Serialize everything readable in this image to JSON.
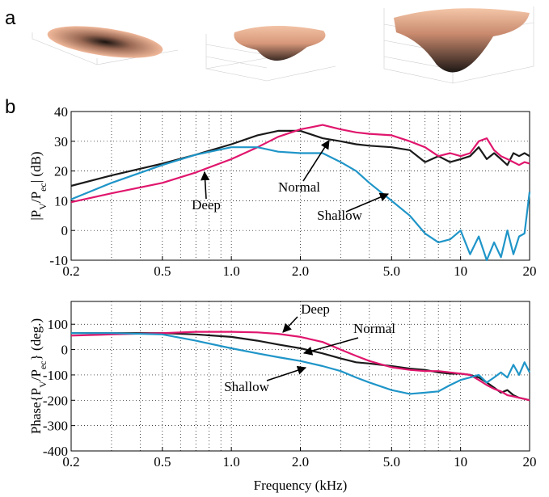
{
  "panel_labels": [
    "a",
    "b"
  ],
  "chart_data": [
    {
      "type": "line",
      "log_x": true,
      "grid": true,
      "ylabel_parts": [
        {
          "text": "|P"
        },
        {
          "text": "V",
          "sub": true
        },
        {
          "text": "/P"
        },
        {
          "text": "ec",
          "sub": true
        },
        {
          "text": "| (dB)"
        }
      ],
      "x": [
        0.2,
        0.3,
        0.5,
        0.7,
        1.0,
        1.3,
        1.6,
        2.0,
        2.5,
        3.0,
        3.5,
        4.0,
        5.0,
        6.0,
        7.0,
        8.0,
        9.0,
        10,
        11,
        12,
        13,
        14,
        15,
        16,
        17,
        18,
        19,
        20
      ],
      "series": [
        {
          "name": "Normal",
          "color": "#1a1a1a",
          "values": [
            15,
            18.5,
            22.5,
            25.5,
            29,
            32,
            33.5,
            33.5,
            31,
            30,
            29,
            28.5,
            28,
            27,
            23,
            25,
            23,
            24,
            25,
            28,
            24,
            26,
            24,
            22,
            26,
            25,
            26,
            25
          ]
        },
        {
          "name": "Deep",
          "color": "#e0166d",
          "values": [
            9.5,
            12.5,
            16,
            19.5,
            24,
            28,
            31.5,
            34,
            35.5,
            34,
            33,
            32.5,
            32,
            30,
            28,
            25,
            26,
            25,
            26,
            30,
            31,
            27,
            25,
            24,
            23,
            22,
            23,
            22.5
          ]
        },
        {
          "name": "Shallow",
          "color": "#1f95c8",
          "values": [
            10.5,
            16,
            22,
            25.5,
            28,
            28,
            26.5,
            26,
            26,
            23,
            20,
            16,
            10,
            5,
            -1,
            -4,
            -3,
            0,
            -8,
            -2,
            -10,
            -4,
            -9,
            0,
            -8,
            -2,
            -1,
            13
          ]
        }
      ],
      "xlim": [
        0.2,
        20
      ],
      "xticks": [
        0.2,
        0.5,
        {
          "value": 1,
          "label": "1.0"
        },
        {
          "value": 2,
          "label": "2.0"
        },
        {
          "value": 5,
          "label": "5.0"
        },
        10,
        20
      ],
      "xminorticks": [
        0.3,
        0.4,
        0.6,
        0.7,
        0.8,
        0.9,
        3,
        4,
        6,
        7,
        8,
        9
      ],
      "ylim": [
        -10,
        40
      ],
      "yticks": [
        -10,
        0,
        10,
        20,
        30,
        40
      ],
      "annotations": [
        "Deep",
        "Normal",
        "Shallow"
      ]
    },
    {
      "type": "line",
      "log_x": true,
      "grid": true,
      "ylabel_parts": [
        {
          "text": "Phase{P"
        },
        {
          "text": "V",
          "sub": true
        },
        {
          "text": "/P"
        },
        {
          "text": "ec",
          "sub": true
        },
        {
          "text": "} (deg.)"
        }
      ],
      "xlabel": "Frequency (kHz)",
      "x": [
        0.2,
        0.3,
        0.5,
        0.7,
        1.0,
        1.3,
        1.6,
        2.0,
        2.5,
        3.0,
        3.5,
        4.0,
        5.0,
        6.0,
        7.0,
        8.0,
        9.0,
        10,
        11,
        12,
        13,
        14,
        15,
        16,
        17,
        18,
        19,
        20
      ],
      "series": [
        {
          "name": "Normal",
          "color": "#1a1a1a",
          "values": [
            65,
            65,
            65,
            60,
            50,
            35,
            20,
            5,
            -15,
            -35,
            -50,
            -55,
            -65,
            -75,
            -80,
            -90,
            -95,
            -95,
            -100,
            -110,
            -130,
            -150,
            -170,
            -160,
            -180,
            -190,
            -195,
            -200
          ]
        },
        {
          "name": "Deep",
          "color": "#e0166d",
          "values": [
            55,
            60,
            65,
            70,
            70,
            68,
            62,
            50,
            30,
            0,
            -25,
            -45,
            -70,
            -80,
            -85,
            -85,
            -90,
            -95,
            -100,
            -120,
            -140,
            -155,
            -165,
            -180,
            -185,
            -190,
            -195,
            -200
          ]
        },
        {
          "name": "Shallow",
          "color": "#1f95c8",
          "values": [
            65,
            65,
            60,
            35,
            5,
            -15,
            -30,
            -45,
            -65,
            -85,
            -110,
            -130,
            -160,
            -175,
            -170,
            -165,
            -140,
            -120,
            -110,
            -100,
            -130,
            -110,
            -90,
            -110,
            -60,
            -100,
            -50,
            -90
          ]
        }
      ],
      "xlim": [
        0.2,
        20
      ],
      "xticks": [
        0.2,
        0.5,
        {
          "value": 1,
          "label": "1.0"
        },
        {
          "value": 2,
          "label": "2.0"
        },
        {
          "value": 5,
          "label": "5.0"
        },
        10,
        20
      ],
      "xminorticks": [
        0.3,
        0.4,
        0.6,
        0.7,
        0.8,
        0.9,
        3,
        4,
        6,
        7,
        8,
        9
      ],
      "ylim": [
        -400,
        190
      ],
      "yticks": [
        -400,
        -300,
        -200,
        -100,
        0,
        100
      ],
      "annotations": [
        "Deep",
        "Normal",
        "Shallow"
      ]
    }
  ]
}
